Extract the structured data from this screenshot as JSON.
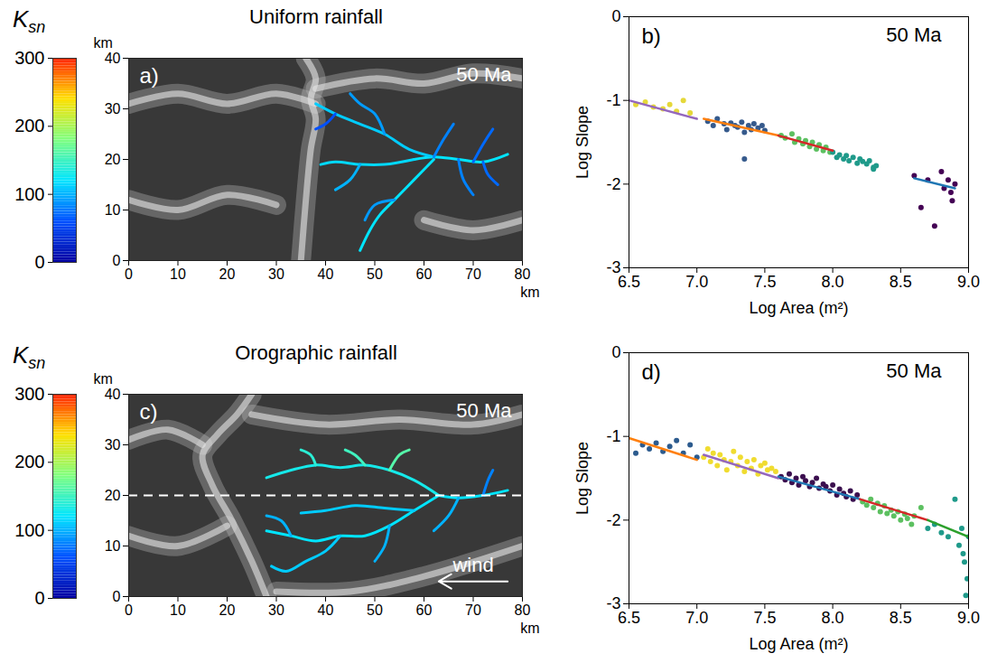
{
  "chart_data": [
    {
      "type": "map",
      "panel": "a)",
      "title": "Uniform rainfall",
      "annotation": "50 Ma",
      "x_label": "km",
      "y_label": "km",
      "xlim": [
        0,
        80
      ],
      "ylim": [
        0,
        40
      ],
      "xticks": [
        0,
        10,
        20,
        30,
        40,
        50,
        60,
        70,
        80
      ],
      "yticks": [
        0,
        10,
        20,
        30,
        40
      ],
      "colorbar": {
        "label": "K",
        "subscript": "sn",
        "range": [
          0,
          300
        ],
        "ticks": [
          0,
          100,
          200,
          300
        ]
      },
      "ridges": [
        {
          "x": [
            36,
            38,
            37,
            38,
            37,
            36,
            35
          ],
          "y": [
            40,
            36,
            32,
            28,
            22,
            12,
            0
          ]
        },
        {
          "x": [
            0,
            10,
            20,
            30,
            38
          ],
          "y": [
            31,
            33,
            31,
            33,
            31
          ]
        },
        {
          "x": [
            38,
            50,
            60,
            70,
            80
          ],
          "y": [
            34,
            36,
            35,
            37,
            36
          ]
        },
        {
          "x": [
            60,
            70,
            80
          ],
          "y": [
            8,
            6,
            8
          ]
        },
        {
          "x": [
            0,
            10,
            20,
            30
          ],
          "y": [
            12,
            10,
            13,
            11
          ]
        }
      ],
      "rivers": [
        {
          "ksn": 120,
          "x": [
            77,
            72,
            67,
            62,
            58
          ],
          "y": [
            21,
            19.5,
            20,
            20.5,
            20
          ]
        },
        {
          "ksn": 110,
          "x": [
            62,
            57,
            52,
            47,
            42,
            38
          ],
          "y": [
            20.5,
            22,
            25,
            27,
            29,
            31
          ]
        },
        {
          "ksn": 115,
          "x": [
            58,
            52,
            47,
            42,
            39
          ],
          "y": [
            20,
            19,
            19,
            19.5,
            19
          ]
        },
        {
          "ksn": 120,
          "x": [
            62,
            58,
            54,
            51,
            49,
            47
          ],
          "y": [
            20,
            16,
            12,
            9,
            6,
            2
          ]
        },
        {
          "ksn": 90,
          "x": [
            52,
            50,
            47,
            45
          ],
          "y": [
            25,
            29,
            31,
            33
          ]
        },
        {
          "ksn": 80,
          "x": [
            62,
            64,
            66
          ],
          "y": [
            20.5,
            24,
            27
          ]
        },
        {
          "ksn": 70,
          "x": [
            70,
            72,
            74
          ],
          "y": [
            19.5,
            23,
            26
          ]
        },
        {
          "ksn": 90,
          "x": [
            54,
            50,
            48
          ],
          "y": [
            12,
            11,
            8
          ]
        },
        {
          "ksn": 100,
          "x": [
            47,
            45,
            42
          ],
          "y": [
            19,
            16,
            14
          ]
        },
        {
          "ksn": 80,
          "x": [
            67,
            68,
            70
          ],
          "y": [
            20,
            16,
            13
          ]
        },
        {
          "ksn": 70,
          "x": [
            72,
            73,
            75
          ],
          "y": [
            19.5,
            17,
            15
          ]
        },
        {
          "ksn": 60,
          "x": [
            42,
            40,
            38
          ],
          "y": [
            29,
            27,
            26
          ]
        }
      ]
    },
    {
      "type": "scatter",
      "panel": "b)",
      "annotation": "50 Ma",
      "x_label": "Log Area (m²)",
      "y_label": "Log Slope",
      "xlim": [
        6.5,
        9
      ],
      "ylim": [
        -3,
        0
      ],
      "xticks": [
        6.5,
        {
          "value": 7,
          "label": "7.0"
        },
        7.5,
        {
          "value": 8,
          "label": "8.0"
        },
        8.5,
        {
          "value": 9,
          "label": "9.0"
        }
      ],
      "yticks": [
        -3,
        -2,
        -1,
        0
      ],
      "series": [
        {
          "color": "#e5d83a",
          "x": [
            6.55,
            6.62,
            6.68,
            6.75,
            6.8,
            6.85,
            6.9,
            6.95
          ],
          "y": [
            -1.05,
            -1.02,
            -1.08,
            -1.1,
            -1.05,
            -1.13,
            -1.0,
            -1.15
          ]
        },
        {
          "color": "#365a8c",
          "x": [
            7.08,
            7.12,
            7.15,
            7.2,
            7.22,
            7.25,
            7.28,
            7.3,
            7.33,
            7.35,
            7.38,
            7.4,
            7.42,
            7.45,
            7.48,
            7.5,
            7.35
          ],
          "y": [
            -1.25,
            -1.3,
            -1.22,
            -1.28,
            -1.35,
            -1.27,
            -1.3,
            -1.32,
            -1.26,
            -1.38,
            -1.3,
            -1.35,
            -1.28,
            -1.33,
            -1.3,
            -1.36,
            -1.7
          ]
        },
        {
          "color": "#5cc060",
          "x": [
            7.62,
            7.65,
            7.7,
            7.72,
            7.75,
            7.78,
            7.8,
            7.83,
            7.85,
            7.88,
            7.9,
            7.93,
            7.95,
            7.98
          ],
          "y": [
            -1.42,
            -1.45,
            -1.4,
            -1.5,
            -1.46,
            -1.52,
            -1.48,
            -1.55,
            -1.5,
            -1.58,
            -1.53,
            -1.6,
            -1.56,
            -1.62
          ]
        },
        {
          "color": "#1f9a8a",
          "x": [
            8.0,
            8.03,
            8.05,
            8.08,
            8.1,
            8.12,
            8.15,
            8.18,
            8.2,
            8.22,
            8.25,
            8.27,
            8.3,
            8.32,
            8.3
          ],
          "y": [
            -1.62,
            -1.68,
            -1.65,
            -1.7,
            -1.66,
            -1.72,
            -1.68,
            -1.75,
            -1.7,
            -1.73,
            -1.76,
            -1.72,
            -1.8,
            -1.78,
            -1.82
          ]
        },
        {
          "color": "#440154",
          "x": [
            8.6,
            8.65,
            8.7,
            8.75,
            8.8,
            8.82,
            8.85,
            8.87,
            8.88,
            8.9
          ],
          "y": [
            -1.9,
            -2.28,
            -1.95,
            -2.5,
            -1.85,
            -2.05,
            -1.95,
            -2.1,
            -2.2,
            -2.0
          ]
        }
      ],
      "fits": [
        {
          "color": "#9467bd",
          "x": [
            6.5,
            7.0
          ],
          "y": [
            -1.0,
            -1.22
          ]
        },
        {
          "color": "#ff7f0e",
          "x": [
            7.05,
            7.6
          ],
          "y": [
            -1.22,
            -1.42
          ]
        },
        {
          "color": "#d62728",
          "x": [
            7.6,
            8.0
          ],
          "y": [
            -1.42,
            -1.6
          ]
        },
        {
          "color": "#1f77b4",
          "x": [
            8.6,
            8.9
          ],
          "y": [
            -1.93,
            -2.05
          ]
        }
      ]
    },
    {
      "type": "map",
      "panel": "c)",
      "title": "Orographic rainfall",
      "annotation": "50 Ma",
      "x_label": "km",
      "y_label": "km",
      "xlim": [
        0,
        80
      ],
      "ylim": [
        0,
        40
      ],
      "xticks": [
        0,
        10,
        20,
        30,
        40,
        50,
        60,
        70,
        80
      ],
      "yticks": [
        0,
        10,
        20,
        30,
        40
      ],
      "colorbar": {
        "label": "K",
        "subscript": "sn",
        "range": [
          0,
          300
        ],
        "ticks": [
          0,
          100,
          200,
          300
        ]
      },
      "reference_y": 20,
      "arrow": {
        "label": "wind",
        "x": [
          77,
          63
        ],
        "y": 3
      },
      "ridges": [
        {
          "x": [
            25,
            22,
            18,
            15,
            17,
            21,
            25,
            28
          ],
          "y": [
            40,
            36,
            32,
            28,
            22,
            15,
            7,
            0
          ]
        },
        {
          "x": [
            15,
            8,
            0
          ],
          "y": [
            30,
            33,
            31
          ]
        },
        {
          "x": [
            25,
            40,
            55,
            70,
            80
          ],
          "y": [
            36,
            34,
            35,
            34,
            36
          ]
        },
        {
          "x": [
            30,
            45,
            60,
            80
          ],
          "y": [
            1,
            1,
            4,
            10
          ]
        },
        {
          "x": [
            20,
            10,
            0
          ],
          "y": [
            14,
            10,
            12
          ]
        }
      ],
      "rivers": [
        {
          "ksn": 120,
          "x": [
            77,
            72,
            67,
            63
          ],
          "y": [
            21,
            20,
            19.5,
            20
          ]
        },
        {
          "ksn": 130,
          "x": [
            63,
            58,
            53,
            48,
            43,
            38,
            33,
            28
          ],
          "y": [
            20,
            23,
            25,
            26,
            25.5,
            26,
            25,
            23.5
          ]
        },
        {
          "ksn": 120,
          "x": [
            63,
            58,
            53,
            48,
            43,
            38,
            33,
            28
          ],
          "y": [
            20,
            17,
            14,
            12,
            12,
            11,
            12,
            13
          ]
        },
        {
          "ksn": 110,
          "x": [
            58,
            52,
            46,
            40,
            35
          ],
          "y": [
            17,
            17.5,
            18,
            17,
            16.5
          ]
        },
        {
          "ksn": 110,
          "x": [
            43,
            40,
            36,
            32,
            29
          ],
          "y": [
            12,
            9,
            7,
            5,
            6
          ]
        },
        {
          "ksn": 150,
          "x": [
            48,
            46,
            44
          ],
          "y": [
            26,
            28,
            29
          ]
        },
        {
          "ksn": 140,
          "x": [
            38,
            37,
            35
          ],
          "y": [
            26,
            28,
            29
          ]
        },
        {
          "ksn": 160,
          "x": [
            53,
            55,
            57
          ],
          "y": [
            25,
            28,
            29
          ]
        },
        {
          "ksn": 100,
          "x": [
            53,
            52,
            50
          ],
          "y": [
            14,
            10,
            7
          ]
        },
        {
          "ksn": 100,
          "x": [
            67,
            65,
            62
          ],
          "y": [
            19.5,
            16,
            13
          ]
        },
        {
          "ksn": 80,
          "x": [
            72,
            73,
            74
          ],
          "y": [
            20,
            23,
            25
          ]
        },
        {
          "ksn": 100,
          "x": [
            33,
            31,
            28
          ],
          "y": [
            12,
            15,
            16
          ]
        }
      ]
    },
    {
      "type": "scatter",
      "panel": "d)",
      "annotation": "50 Ma",
      "x_label": "Log Area (m²)",
      "y_label": "Log Slope",
      "xlim": [
        6.5,
        9
      ],
      "ylim": [
        -3,
        0
      ],
      "xticks": [
        6.5,
        {
          "value": 7,
          "label": "7.0"
        },
        7.5,
        {
          "value": 8,
          "label": "8.0"
        },
        8.5,
        {
          "value": 9,
          "label": "9.0"
        }
      ],
      "yticks": [
        -3,
        -2,
        -1,
        0
      ],
      "series": [
        {
          "color": "#2c5b8e",
          "x": [
            6.55,
            6.6,
            6.65,
            6.7,
            6.75,
            6.8,
            6.85,
            6.9,
            6.95,
            7.0
          ],
          "y": [
            -1.2,
            -1.1,
            -1.15,
            -1.08,
            -1.18,
            -1.12,
            -1.05,
            -1.2,
            -1.1,
            -1.25
          ]
        },
        {
          "color": "#f0dc30",
          "x": [
            7.05,
            7.08,
            7.1,
            7.12,
            7.15,
            7.17,
            7.2,
            7.22,
            7.25,
            7.27,
            7.3,
            7.32,
            7.35,
            7.37,
            7.4,
            7.42,
            7.45,
            7.47,
            7.5,
            7.52,
            7.55,
            7.58
          ],
          "y": [
            -1.25,
            -1.15,
            -1.3,
            -1.2,
            -1.35,
            -1.22,
            -1.28,
            -1.4,
            -1.3,
            -1.18,
            -1.35,
            -1.25,
            -1.42,
            -1.3,
            -1.38,
            -1.28,
            -1.45,
            -1.35,
            -1.32,
            -1.4,
            -1.38,
            -1.42
          ]
        },
        {
          "color": "#3b0f4f",
          "x": [
            7.62,
            7.65,
            7.68,
            7.7,
            7.73,
            7.75,
            7.78,
            7.8,
            7.83,
            7.85,
            7.88,
            7.9,
            7.93,
            7.95,
            7.98,
            8.0,
            8.03,
            8.05,
            8.08,
            8.1,
            8.13,
            8.15,
            8.18
          ],
          "y": [
            -1.48,
            -1.52,
            -1.45,
            -1.55,
            -1.5,
            -1.58,
            -1.48,
            -1.53,
            -1.6,
            -1.55,
            -1.5,
            -1.62,
            -1.57,
            -1.6,
            -1.65,
            -1.58,
            -1.7,
            -1.63,
            -1.68,
            -1.72,
            -1.65,
            -1.75,
            -1.7
          ]
        },
        {
          "color": "#5cc060",
          "x": [
            8.22,
            8.25,
            8.28,
            8.3,
            8.33,
            8.35,
            8.38,
            8.4,
            8.43,
            8.45,
            8.48,
            8.5,
            8.53,
            8.55,
            8.58,
            8.6,
            8.65
          ],
          "y": [
            -1.78,
            -1.82,
            -1.75,
            -1.85,
            -1.8,
            -1.9,
            -1.83,
            -1.92,
            -1.88,
            -1.95,
            -1.9,
            -2.0,
            -1.93,
            -1.98,
            -2.05,
            -1.95,
            -1.85
          ]
        },
        {
          "color": "#1f9a8a",
          "x": [
            8.7,
            8.75,
            8.8,
            8.85,
            8.9,
            8.93,
            8.95,
            8.97,
            8.98,
            9.0,
            8.99,
            8.96
          ],
          "y": [
            -2.1,
            -2.05,
            -2.15,
            -2.2,
            -1.75,
            -2.3,
            -2.1,
            -2.5,
            -2.9,
            -2.2,
            -2.7,
            -2.4
          ]
        }
      ],
      "fits": [
        {
          "color": "#ff7f0e",
          "x": [
            6.5,
            7.0
          ],
          "y": [
            -1.02,
            -1.28
          ]
        },
        {
          "color": "#9467bd",
          "x": [
            7.05,
            7.6
          ],
          "y": [
            -1.22,
            -1.5
          ]
        },
        {
          "color": "#1f77b4",
          "x": [
            7.6,
            8.2
          ],
          "y": [
            -1.48,
            -1.75
          ]
        },
        {
          "color": "#d62728",
          "x": [
            8.2,
            8.7
          ],
          "y": [
            -1.75,
            -2.0
          ]
        },
        {
          "color": "#2ca02c",
          "x": [
            8.7,
            9.0
          ],
          "y": [
            -2.0,
            -2.2
          ]
        }
      ]
    }
  ]
}
